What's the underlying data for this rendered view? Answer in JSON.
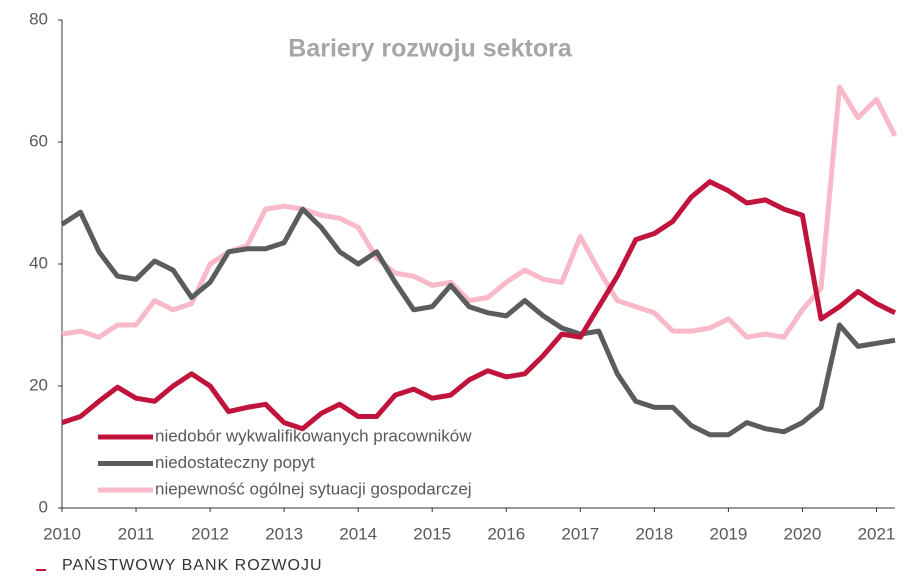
{
  "chart_data": {
    "type": "line",
    "title": "Bariery rozwoju sektora",
    "x": [
      2010,
      2010.25,
      2010.5,
      2010.75,
      2011,
      2011.25,
      2011.5,
      2011.75,
      2012,
      2012.25,
      2012.5,
      2012.75,
      2013,
      2013.25,
      2013.5,
      2013.75,
      2014,
      2014.25,
      2014.5,
      2014.75,
      2015,
      2015.25,
      2015.5,
      2015.75,
      2016,
      2016.25,
      2016.5,
      2016.75,
      2017,
      2017.25,
      2017.5,
      2017.75,
      2018,
      2018.25,
      2018.5,
      2018.75,
      2019,
      2019.25,
      2019.5,
      2019.75,
      2020,
      2020.25,
      2020.5,
      2020.75,
      2021,
      2021.25
    ],
    "series": [
      {
        "name": "niedobór wykwalifikowanych pracowników",
        "color": "#c0143c",
        "values": [
          14,
          15,
          17.5,
          19.8,
          18,
          17.5,
          20,
          22,
          20,
          15.8,
          16.5,
          17,
          14,
          13,
          15.5,
          17,
          15,
          15,
          18.5,
          19.5,
          18,
          18.5,
          21,
          22.5,
          21.5,
          22,
          25,
          28.5,
          28,
          33,
          38,
          44,
          45,
          47,
          51,
          53.5,
          52,
          50,
          50.5,
          49,
          48,
          31,
          33,
          35.5,
          33.5,
          32
        ]
      },
      {
        "name": "niedostateczny popyt",
        "color": "#595d60",
        "values": [
          46.5,
          48.5,
          42,
          38,
          37.5,
          40.5,
          39,
          34.5,
          37,
          42,
          42.5,
          42.5,
          43.5,
          49,
          46,
          42,
          40,
          42,
          37,
          32.5,
          33,
          36.5,
          33,
          32,
          31.5,
          34,
          31.5,
          29.5,
          28.5,
          29,
          22,
          17.5,
          16.5,
          16.5,
          13.5,
          12,
          12,
          14,
          13,
          12.5,
          14,
          16.5,
          30,
          26.5,
          27,
          27.5
        ]
      },
      {
        "name": "niepewność ogólnej sytuacji gospodarczej",
        "color": "#f8b9c8",
        "values": [
          28.5,
          29,
          28,
          30,
          30,
          34,
          32.5,
          33.5,
          40,
          42,
          43,
          49,
          49.5,
          49,
          48,
          47.5,
          46,
          41,
          38.5,
          38,
          36.5,
          37,
          34,
          34.5,
          37,
          39,
          37.5,
          37,
          44.5,
          39,
          34,
          33,
          32,
          29,
          29,
          29.5,
          31,
          28,
          28.5,
          28,
          32.5,
          36,
          69,
          64,
          67,
          61
        ]
      }
    ],
    "xlim": [
      2010,
      2021.25
    ],
    "xticks": [
      2010,
      2011,
      2012,
      2013,
      2014,
      2015,
      2016,
      2017,
      2018,
      2019,
      2020,
      2021
    ],
    "ylim": [
      0,
      80
    ],
    "yticks": [
      0,
      20,
      40,
      60,
      80
    ],
    "grid": false,
    "legend": "lower left"
  },
  "footer": "PAŃSTWOWY BANK ROZWOJU"
}
